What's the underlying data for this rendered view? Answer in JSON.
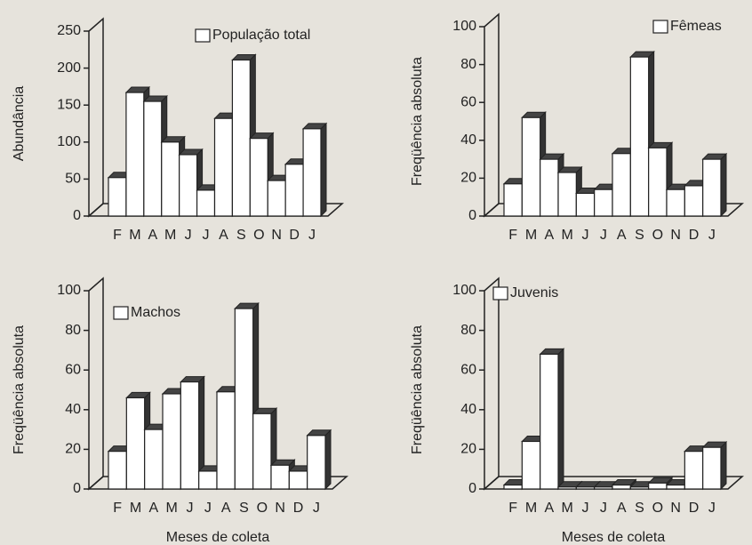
{
  "chart_data": [
    {
      "type": "bar3d",
      "y_label": "Abundância",
      "categories": [
        "F",
        "M",
        "A",
        "M",
        "J",
        "J",
        "A",
        "S",
        "O",
        "N",
        "D",
        "J"
      ],
      "series": [
        {
          "name": "População total",
          "color": "#ffffff",
          "values": [
            52,
            167,
            155,
            100,
            83,
            35,
            132,
            211,
            105,
            48,
            70,
            118
          ]
        }
      ],
      "ylim": [
        0,
        250
      ],
      "yticks": [
        0,
        50,
        100,
        150,
        200,
        250
      ]
    },
    {
      "type": "bar3d",
      "y_label": "Freqüência absoluta",
      "categories": [
        "F",
        "M",
        "A",
        "M",
        "J",
        "J",
        "A",
        "S",
        "O",
        "N",
        "D",
        "J"
      ],
      "series": [
        {
          "name": "Fêmeas",
          "color": "#ffffff",
          "values": [
            17,
            52,
            30,
            23,
            12,
            14,
            33,
            84,
            36,
            14,
            16,
            30
          ]
        }
      ],
      "ylim": [
        0,
        100
      ],
      "yticks": [
        0,
        20,
        40,
        60,
        80,
        100
      ]
    },
    {
      "type": "bar3d",
      "y_label": "Freqüência absoluta",
      "x_label": "Meses de coleta",
      "categories": [
        "F",
        "M",
        "A",
        "M",
        "J",
        "J",
        "A",
        "S",
        "O",
        "N",
        "D",
        "J"
      ],
      "series": [
        {
          "name": "Machos",
          "color": "#ffffff",
          "values": [
            19,
            46,
            30,
            48,
            54,
            9,
            49,
            91,
            38,
            12,
            9,
            27
          ]
        }
      ],
      "ylim": [
        0,
        100
      ],
      "yticks": [
        0,
        20,
        40,
        60,
        80,
        100
      ]
    },
    {
      "type": "bar3d",
      "y_label": "Freqüência absoluta",
      "x_label": "Meses de coleta",
      "categories": [
        "F",
        "M",
        "A",
        "M",
        "J",
        "J",
        "A",
        "S",
        "O",
        "N",
        "D",
        "J"
      ],
      "series": [
        {
          "name": "Juvenis",
          "color": "#ffffff",
          "values": [
            2,
            24,
            68,
            1,
            1,
            1,
            2,
            1,
            3,
            2,
            19,
            21
          ]
        }
      ],
      "ylim": [
        0,
        100
      ],
      "yticks": [
        0,
        20,
        40,
        60,
        80,
        100
      ]
    }
  ]
}
